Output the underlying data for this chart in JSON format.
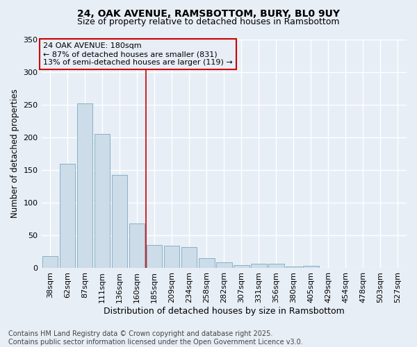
{
  "title1": "24, OAK AVENUE, RAMSBOTTOM, BURY, BL0 9UY",
  "title2": "Size of property relative to detached houses in Ramsbottom",
  "xlabel": "Distribution of detached houses by size in Ramsbottom",
  "ylabel": "Number of detached properties",
  "categories": [
    "38sqm",
    "62sqm",
    "87sqm",
    "111sqm",
    "136sqm",
    "160sqm",
    "185sqm",
    "209sqm",
    "234sqm",
    "258sqm",
    "282sqm",
    "307sqm",
    "331sqm",
    "356sqm",
    "380sqm",
    "405sqm",
    "429sqm",
    "454sqm",
    "478sqm",
    "503sqm",
    "527sqm"
  ],
  "values": [
    18,
    160,
    252,
    205,
    143,
    68,
    35,
    34,
    32,
    15,
    9,
    5,
    7,
    7,
    3,
    4,
    0,
    0,
    1,
    0,
    1
  ],
  "bar_color": "#ccdce8",
  "bar_edge_color": "#7aaabe",
  "vline_x_index": 6,
  "vline_color": "#cc0000",
  "annotation_line1": "24 OAK AVENUE: 180sqm",
  "annotation_line2": "← 87% of detached houses are smaller (831)",
  "annotation_line3": "13% of semi-detached houses are larger (119) →",
  "annotation_box_color": "#cc0000",
  "bg_color": "#e8eef6",
  "grid_color": "#ffffff",
  "ylim": [
    0,
    350
  ],
  "yticks": [
    0,
    50,
    100,
    150,
    200,
    250,
    300,
    350
  ],
  "title1_fontsize": 10,
  "title2_fontsize": 9,
  "xlabel_fontsize": 9,
  "ylabel_fontsize": 8.5,
  "tick_fontsize": 8,
  "footnote": "Contains HM Land Registry data © Crown copyright and database right 2025.\nContains public sector information licensed under the Open Government Licence v3.0.",
  "footnote_fontsize": 7
}
